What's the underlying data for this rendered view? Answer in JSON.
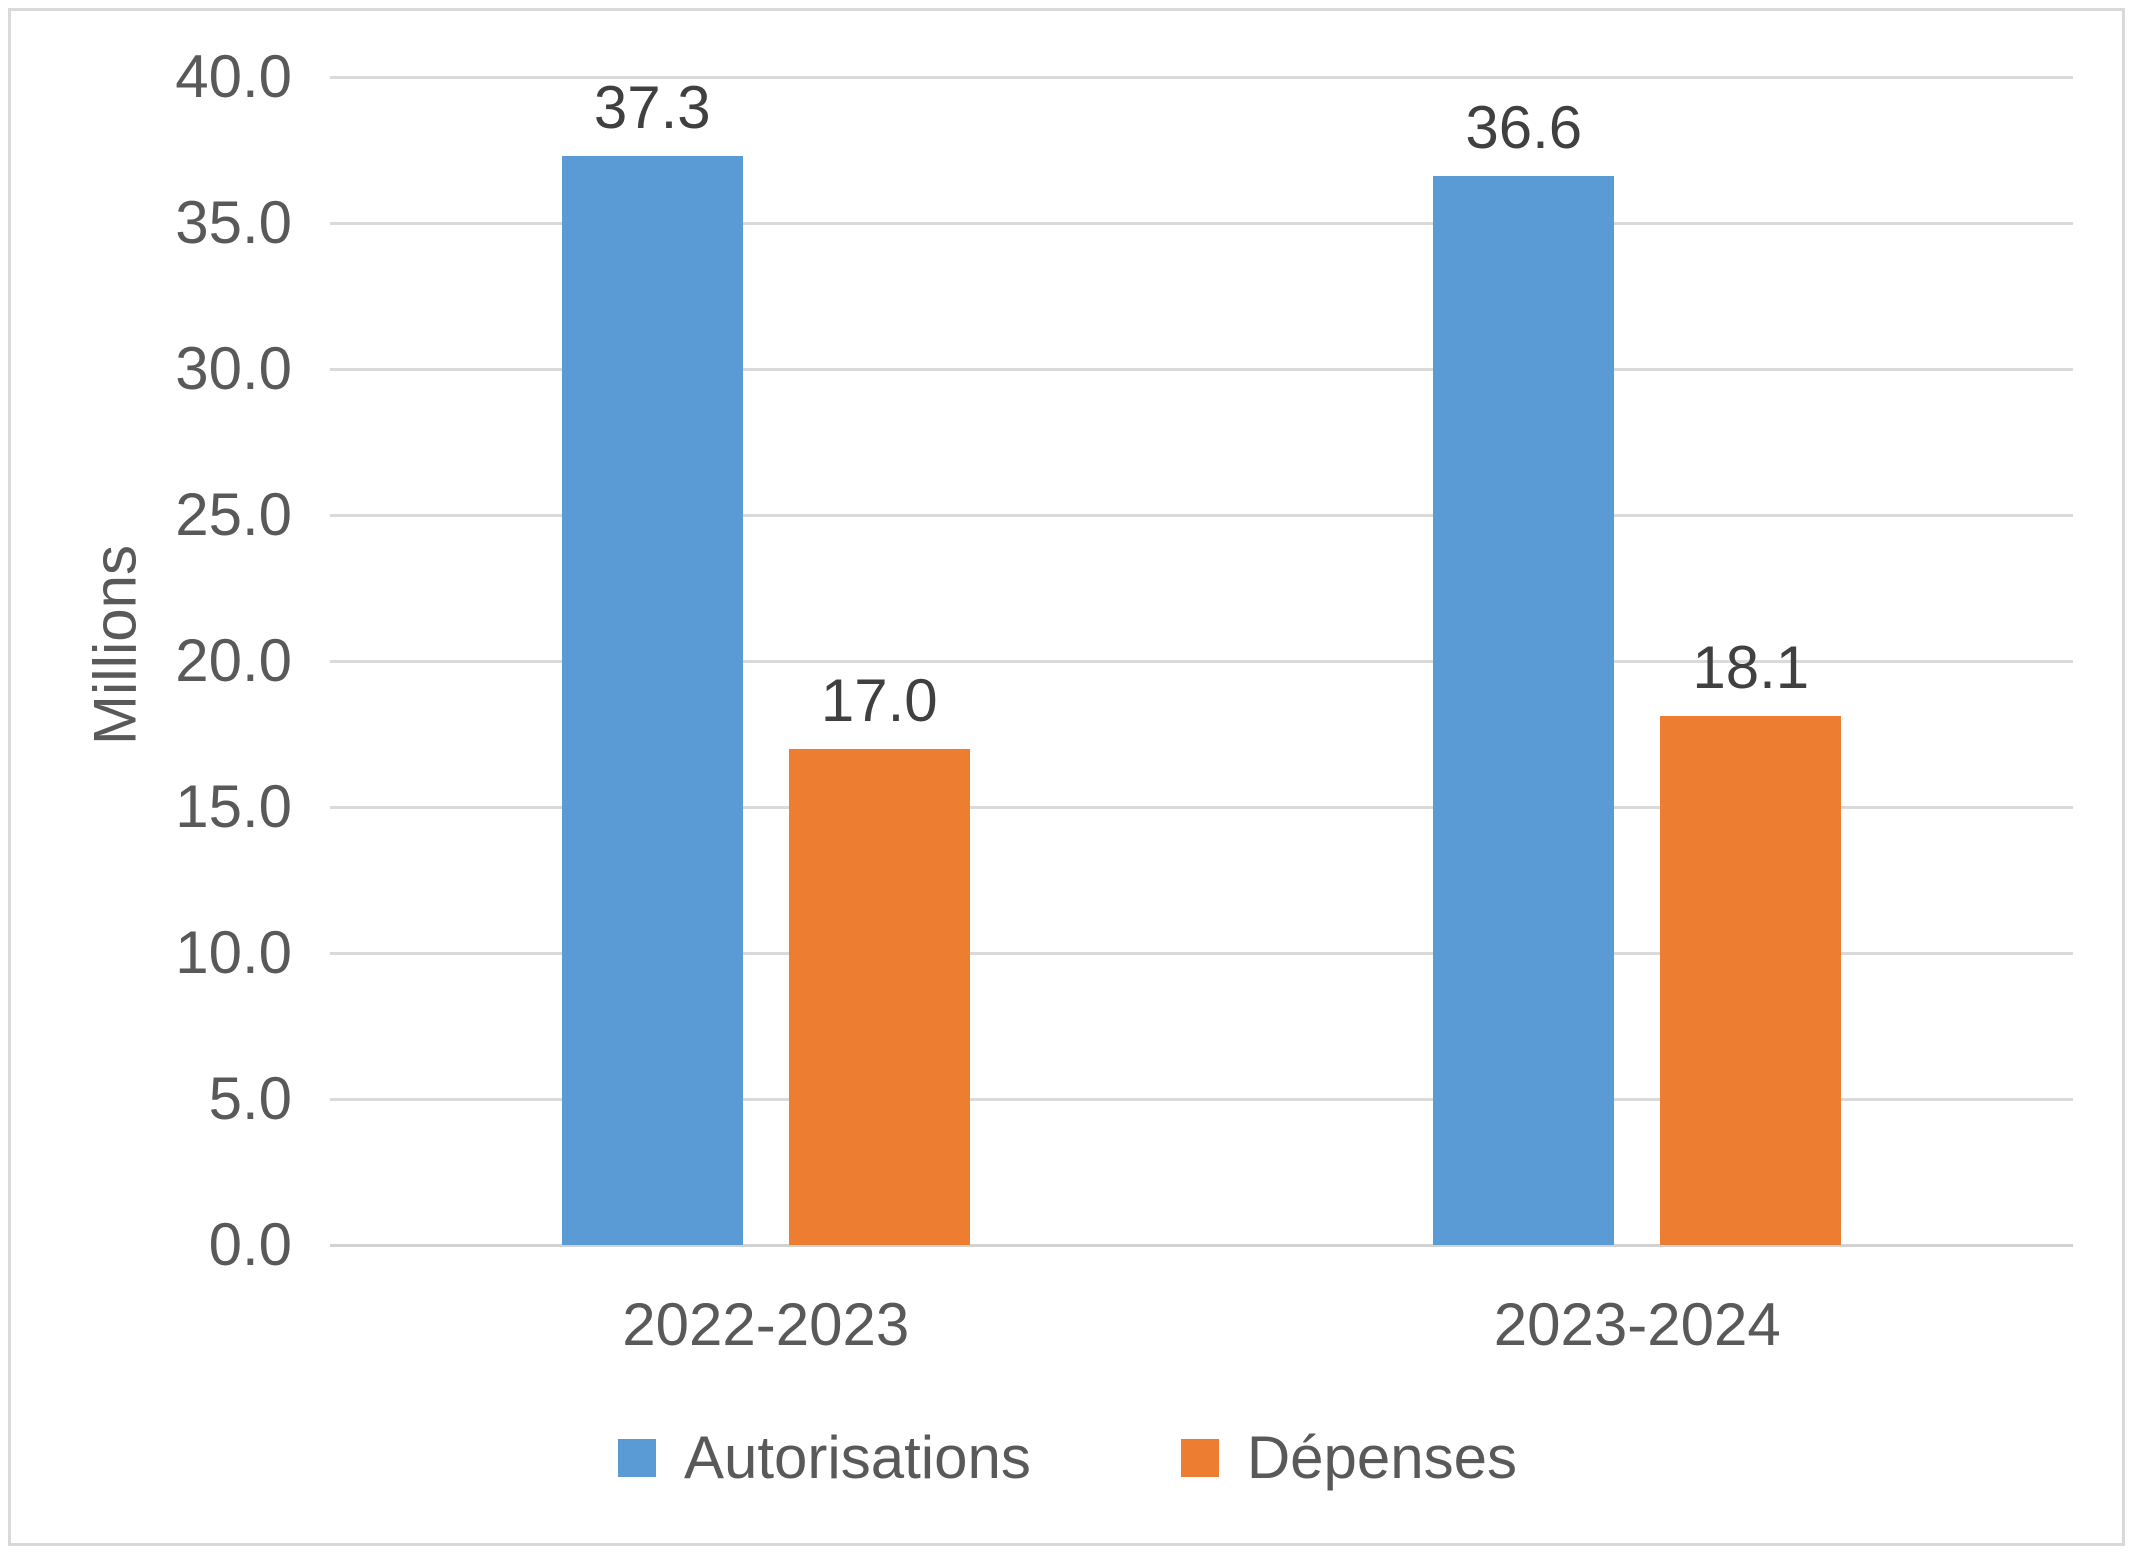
{
  "chart_data": {
    "type": "bar",
    "title": "",
    "categories": [
      "2022-2023",
      "2023-2024"
    ],
    "series": [
      {
        "name": "Autorisations",
        "color": "#5B9BD5",
        "values": [
          37.3,
          36.6
        ]
      },
      {
        "name": "Dépenses",
        "color": "#ED7D31",
        "values": [
          17.0,
          18.1
        ]
      }
    ],
    "data_labels": [
      [
        "37.3",
        "36.6"
      ],
      [
        "17.0",
        "18.1"
      ]
    ],
    "xlabel": "",
    "ylabel": "Millions",
    "ylim": [
      0,
      40
    ],
    "yticks": [
      "0.0",
      "5.0",
      "10.0",
      "15.0",
      "20.0",
      "25.0",
      "30.0",
      "35.0",
      "40.0"
    ],
    "grid": true,
    "legend_position": "bottom",
    "colors": {
      "gridline": "#dadada",
      "axis_text": "#595959",
      "data_label_text": "#404040",
      "frame_border": "#d9d9d9",
      "background": "#ffffff"
    }
  }
}
